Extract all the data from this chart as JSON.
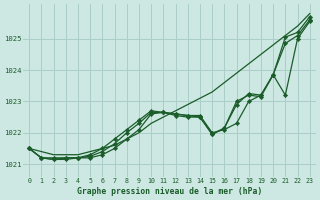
{
  "title": "Graphe pression niveau de la mer (hPa)",
  "bg_color": "#cde8e2",
  "grid_color": "#aacfc8",
  "line_color": "#1a5c2a",
  "xlim": [
    -0.5,
    23.5
  ],
  "ylim": [
    1020.6,
    1026.1
  ],
  "yticks": [
    1021,
    1022,
    1023,
    1024,
    1025
  ],
  "xticks": [
    0,
    1,
    2,
    3,
    4,
    5,
    6,
    7,
    8,
    9,
    10,
    11,
    12,
    13,
    14,
    15,
    16,
    17,
    18,
    19,
    20,
    21,
    22,
    23
  ],
  "series": [
    {
      "x": [
        0,
        1,
        2,
        3,
        4,
        5,
        6,
        7,
        8,
        9,
        10,
        11,
        12,
        13,
        14,
        15,
        16,
        17,
        18,
        19,
        20,
        21,
        22,
        23
      ],
      "y": [
        1021.5,
        1021.4,
        1021.3,
        1021.3,
        1021.3,
        1021.4,
        1021.5,
        1021.6,
        1021.8,
        1022.0,
        1022.3,
        1022.5,
        1022.7,
        1022.9,
        1023.1,
        1023.3,
        1023.6,
        1023.9,
        1024.2,
        1024.5,
        1024.8,
        1025.1,
        1025.4,
        1025.8
      ],
      "marker": null,
      "linewidth": 0.9
    },
    {
      "x": [
        0,
        1,
        2,
        3,
        4,
        5,
        6,
        7,
        8,
        9,
        10,
        11,
        12,
        13,
        14,
        15,
        16,
        17,
        18,
        19,
        20,
        21,
        22,
        23
      ],
      "y": [
        1021.5,
        1021.2,
        1021.2,
        1021.2,
        1021.2,
        1021.2,
        1021.3,
        1021.5,
        1021.8,
        1022.1,
        1022.6,
        1022.65,
        1022.6,
        1022.55,
        1022.55,
        1022.0,
        1022.1,
        1022.3,
        1023.0,
        1023.2,
        1023.85,
        1025.05,
        1025.2,
        1025.7
      ],
      "marker": "D",
      "linewidth": 0.9
    },
    {
      "x": [
        0,
        1,
        2,
        3,
        4,
        5,
        6,
        7,
        8,
        9,
        10,
        11,
        12,
        13,
        14,
        15,
        16,
        17,
        18,
        19,
        20,
        21,
        22,
        23
      ],
      "y": [
        1021.5,
        1021.2,
        1021.15,
        1021.15,
        1021.2,
        1021.25,
        1021.4,
        1021.65,
        1022.0,
        1022.3,
        1022.65,
        1022.65,
        1022.6,
        1022.55,
        1022.5,
        1021.95,
        1022.15,
        1022.9,
        1023.25,
        1023.2,
        1023.85,
        1024.85,
        1025.1,
        1025.6
      ],
      "marker": "D",
      "linewidth": 0.9
    },
    {
      "x": [
        0,
        1,
        2,
        3,
        4,
        5,
        6,
        7,
        8,
        9,
        10,
        11,
        12,
        13,
        14,
        15,
        16,
        17,
        18,
        19,
        20,
        21,
        22,
        23
      ],
      "y": [
        1021.5,
        1021.2,
        1021.15,
        1021.2,
        1021.2,
        1021.3,
        1021.5,
        1021.8,
        1022.1,
        1022.4,
        1022.7,
        1022.65,
        1022.55,
        1022.5,
        1022.5,
        1021.95,
        1022.15,
        1023.0,
        1023.2,
        1023.15,
        1023.85,
        1023.2,
        1025.0,
        1025.55
      ],
      "marker": "D",
      "linewidth": 0.9
    }
  ]
}
